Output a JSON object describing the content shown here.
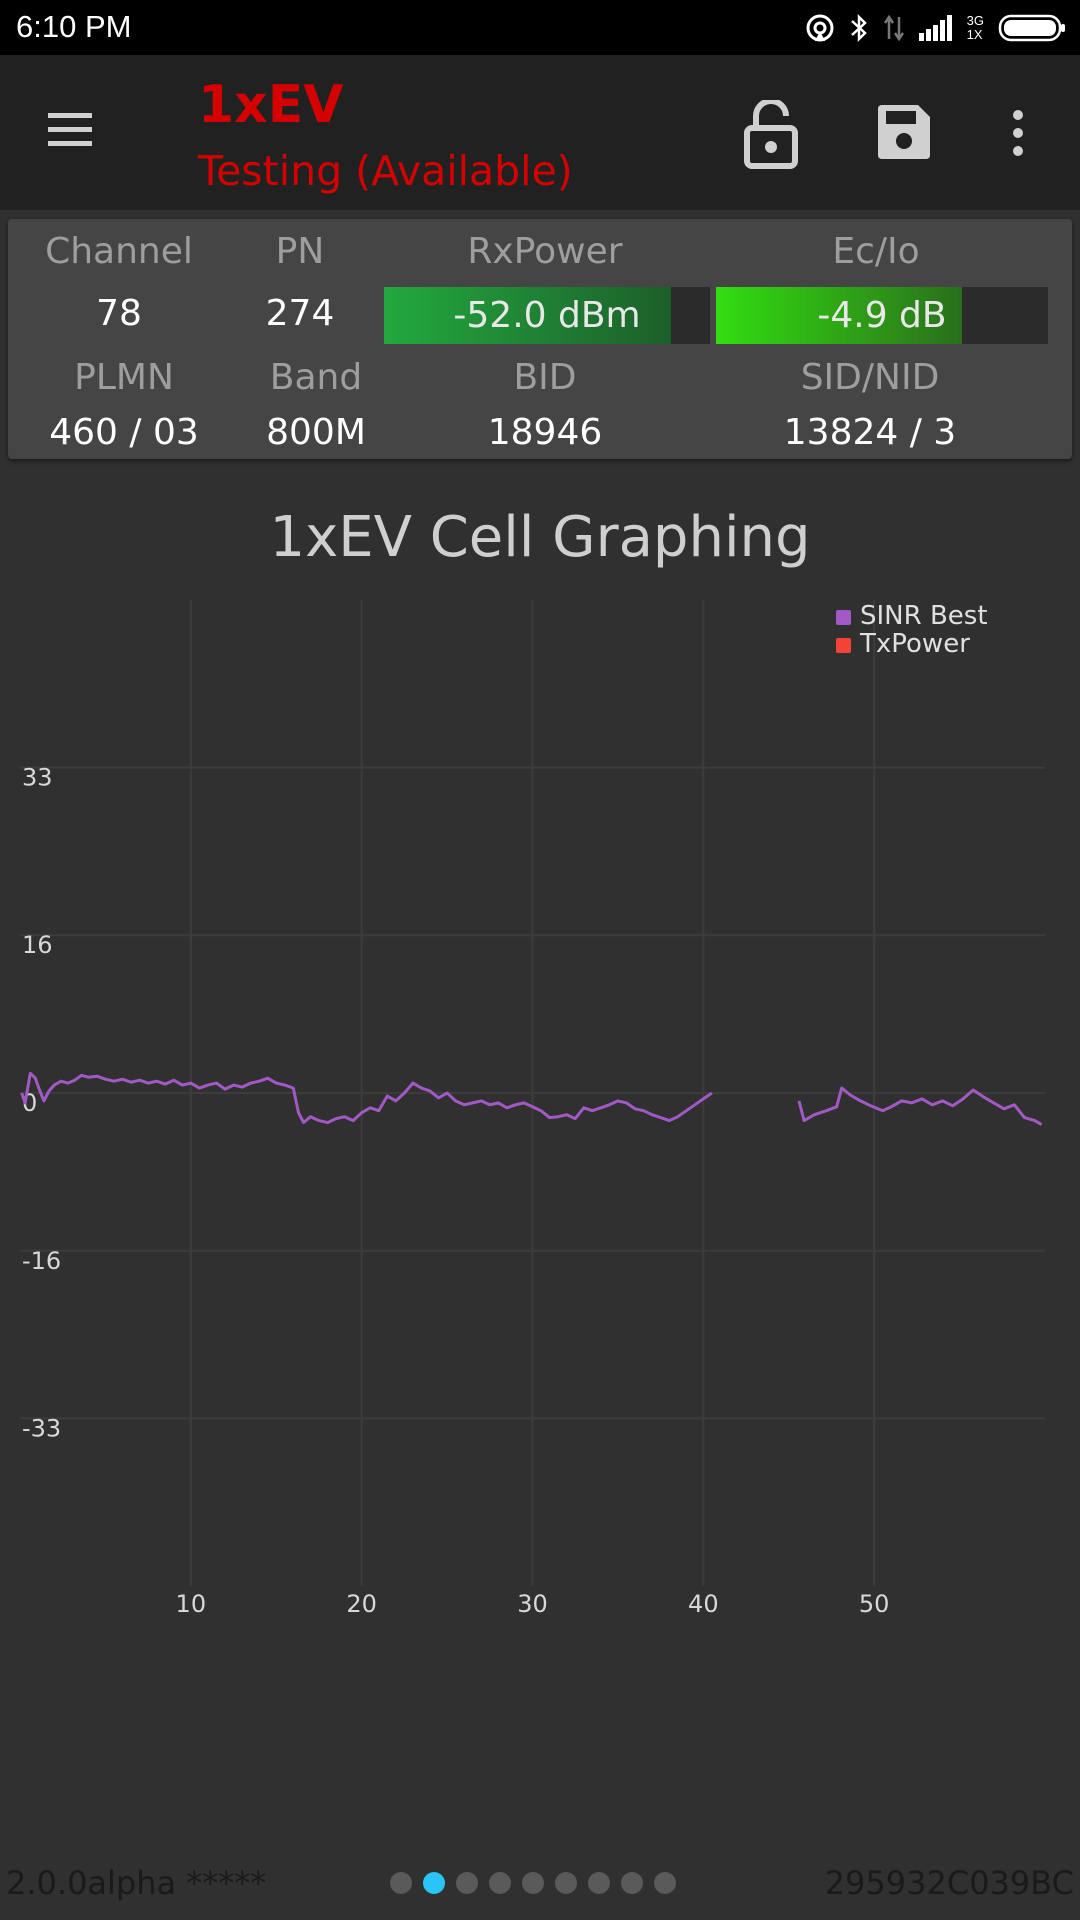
{
  "status_bar": {
    "time": "6:10 PM",
    "network_label_top": "3G",
    "network_label_bottom": "1X"
  },
  "app_bar": {
    "title": "1xEV",
    "subtitle": "Testing (Available)",
    "title_color": "#d50000"
  },
  "info": {
    "channel": {
      "label": "Channel",
      "value": "78"
    },
    "pn": {
      "label": "PN",
      "value": "274"
    },
    "rxpower": {
      "label": "RxPower",
      "value": "-52.0 dBm",
      "fill_fraction": 0.88
    },
    "ecio": {
      "label": "Ec/Io",
      "value": "-4.9 dB",
      "fill_fraction": 0.74
    },
    "plmn": {
      "label": "PLMN",
      "value": "460 / 03"
    },
    "band": {
      "label": "Band",
      "value": "800M"
    },
    "bid": {
      "label": "BID",
      "value": "18946"
    },
    "sidnid": {
      "label": "SID/NID",
      "value": "13824 / 3"
    }
  },
  "chart_title": "1xEV Cell Graphing",
  "chart_data": {
    "type": "line",
    "title": "1xEV Cell Graphing",
    "xlabel": "",
    "ylabel": "",
    "xlim": [
      0,
      60
    ],
    "ylim": [
      -50,
      50
    ],
    "x_ticks": [
      10,
      20,
      30,
      40,
      50
    ],
    "y_ticks": [
      33,
      16,
      0,
      -16,
      -33
    ],
    "grid": true,
    "legend_position": "top-right",
    "series": [
      {
        "name": "SINR Best",
        "color": "#a259c6",
        "segments": [
          [
            [
              0.1,
              0.0
            ],
            [
              0.3,
              -1.0
            ],
            [
              0.6,
              2.0
            ],
            [
              0.9,
              1.5
            ],
            [
              1.1,
              0.5
            ],
            [
              1.4,
              -0.8
            ],
            [
              1.7,
              0.2
            ],
            [
              2.0,
              0.8
            ],
            [
              2.4,
              1.2
            ],
            [
              2.8,
              1.0
            ],
            [
              3.2,
              1.3
            ],
            [
              3.6,
              1.8
            ],
            [
              4.0,
              1.6
            ],
            [
              4.5,
              1.7
            ],
            [
              5.0,
              1.4
            ],
            [
              5.5,
              1.2
            ],
            [
              6.0,
              1.4
            ],
            [
              6.5,
              1.1
            ],
            [
              7.0,
              1.3
            ],
            [
              7.5,
              1.0
            ],
            [
              8.0,
              1.2
            ],
            [
              8.5,
              0.9
            ],
            [
              9.0,
              1.3
            ],
            [
              9.5,
              0.8
            ],
            [
              10.0,
              1.0
            ],
            [
              10.5,
              0.5
            ],
            [
              11.0,
              0.8
            ],
            [
              11.5,
              1.0
            ],
            [
              12.0,
              0.4
            ],
            [
              12.5,
              0.8
            ],
            [
              13.0,
              0.6
            ],
            [
              13.5,
              1.0
            ],
            [
              14.0,
              1.2
            ],
            [
              14.5,
              1.5
            ],
            [
              15.0,
              1.0
            ],
            [
              15.5,
              0.8
            ],
            [
              16.0,
              0.5
            ],
            [
              16.3,
              -2.0
            ],
            [
              16.6,
              -3.0
            ],
            [
              17.0,
              -2.4
            ],
            [
              17.5,
              -2.8
            ],
            [
              18.0,
              -3.0
            ],
            [
              18.5,
              -2.6
            ],
            [
              19.0,
              -2.4
            ],
            [
              19.5,
              -2.8
            ],
            [
              20.0,
              -2.0
            ],
            [
              20.5,
              -1.5
            ],
            [
              21.0,
              -1.8
            ],
            [
              21.5,
              -0.3
            ],
            [
              22.0,
              -0.8
            ],
            [
              22.5,
              0.0
            ],
            [
              23.0,
              1.0
            ],
            [
              23.5,
              0.5
            ],
            [
              24.0,
              0.2
            ],
            [
              24.5,
              -0.5
            ],
            [
              25.0,
              0.0
            ],
            [
              25.5,
              -0.8
            ],
            [
              26.0,
              -1.2
            ],
            [
              26.5,
              -1.0
            ],
            [
              27.0,
              -0.8
            ],
            [
              27.5,
              -1.2
            ],
            [
              28.0,
              -1.0
            ],
            [
              28.5,
              -1.5
            ],
            [
              29.0,
              -1.2
            ],
            [
              29.5,
              -1.0
            ],
            [
              30.0,
              -1.4
            ],
            [
              30.5,
              -1.8
            ],
            [
              31.0,
              -2.5
            ],
            [
              31.5,
              -2.4
            ],
            [
              32.0,
              -2.2
            ],
            [
              32.5,
              -2.6
            ],
            [
              33.0,
              -1.5
            ],
            [
              33.5,
              -1.8
            ],
            [
              34.0,
              -1.5
            ],
            [
              34.5,
              -1.2
            ],
            [
              35.0,
              -0.8
            ],
            [
              35.5,
              -1.0
            ],
            [
              36.0,
              -1.6
            ],
            [
              36.5,
              -1.8
            ],
            [
              37.0,
              -2.2
            ],
            [
              37.5,
              -2.5
            ],
            [
              38.0,
              -2.8
            ],
            [
              38.5,
              -2.4
            ],
            [
              39.0,
              -1.8
            ],
            [
              39.5,
              -1.2
            ],
            [
              40.0,
              -0.6
            ],
            [
              40.5,
              0.0
            ]
          ],
          [
            [
              45.6,
              -0.8
            ],
            [
              45.9,
              -2.8
            ],
            [
              46.5,
              -2.2
            ],
            [
              47.2,
              -1.8
            ],
            [
              47.8,
              -1.4
            ],
            [
              48.1,
              0.5
            ],
            [
              48.6,
              -0.2
            ],
            [
              49.2,
              -0.8
            ],
            [
              49.8,
              -1.3
            ],
            [
              50.5,
              -1.8
            ],
            [
              51.0,
              -1.4
            ],
            [
              51.6,
              -0.8
            ],
            [
              52.2,
              -1.0
            ],
            [
              52.8,
              -0.6
            ],
            [
              53.4,
              -1.2
            ],
            [
              54.0,
              -0.8
            ],
            [
              54.6,
              -1.3
            ],
            [
              55.2,
              -0.6
            ],
            [
              55.8,
              0.3
            ],
            [
              56.4,
              -0.4
            ],
            [
              57.0,
              -1.0
            ],
            [
              57.6,
              -1.6
            ],
            [
              58.2,
              -1.2
            ],
            [
              58.8,
              -2.5
            ],
            [
              59.4,
              -2.8
            ],
            [
              59.8,
              -3.2
            ]
          ]
        ]
      },
      {
        "name": "TxPower",
        "color": "#f44336",
        "segments": []
      }
    ]
  },
  "footer": {
    "version": "2.0.0alpha *****",
    "device_id": "295932C039BC",
    "page_count": 9,
    "active_page": 2
  }
}
